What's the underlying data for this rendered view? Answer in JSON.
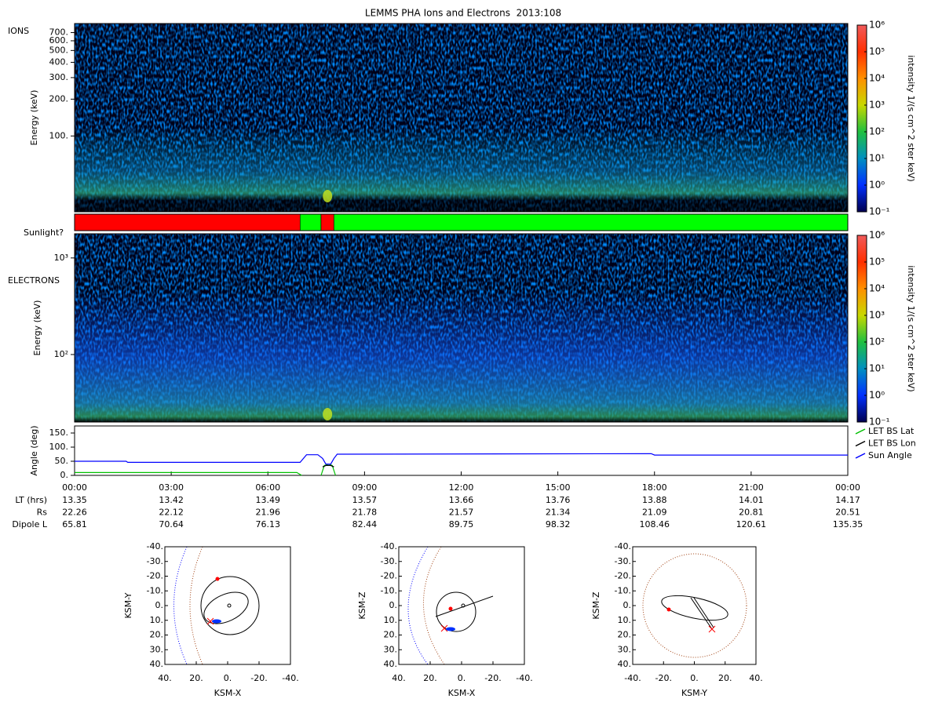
{
  "chart_data": [
    {
      "type": "heatmap",
      "title": "LEMMS PHA Ions and Electrons  2013:108",
      "label": "IONS",
      "ylabel": "Energy (keV)",
      "ylim": [
        24,
        830
      ],
      "log_y": true,
      "yticks": [
        {
          "value": 100,
          "label": "100."
        },
        {
          "value": 200,
          "label": "200."
        },
        {
          "value": 300,
          "label": "300."
        },
        {
          "value": 400,
          "label": "400."
        },
        {
          "value": 500,
          "label": "500."
        },
        {
          "value": 600,
          "label": "600."
        },
        {
          "value": 700,
          "label": "700."
        }
      ],
      "colorbar": {
        "label": "intensity 1/(s cm^2 ster keV)",
        "lim": [
          0.1,
          1000000
        ],
        "log": true,
        "ticks": [
          {
            "value": 0.1,
            "label": "10⁻¹"
          },
          {
            "value": 1,
            "label": "10⁰"
          },
          {
            "value": 10,
            "label": "10¹"
          },
          {
            "value": 100,
            "label": "10²"
          },
          {
            "value": 1000,
            "label": "10³"
          },
          {
            "value": 10000,
            "label": "10⁴"
          },
          {
            "value": 100000,
            "label": "10⁵"
          },
          {
            "value": 1000000,
            "label": "10⁶"
          }
        ]
      }
    },
    {
      "type": "timeline",
      "label": "Sunlight?",
      "xlim": [
        0,
        24
      ],
      "segments": [
        {
          "start": 0,
          "end": 7.0,
          "color": "#ff0000"
        },
        {
          "start": 7.0,
          "end": 7.65,
          "color": "#00ff00"
        },
        {
          "start": 7.65,
          "end": 8.05,
          "color": "#ff0000"
        },
        {
          "start": 8.05,
          "end": 24,
          "color": "#00ff00"
        }
      ]
    },
    {
      "type": "heatmap",
      "label": "ELECTRONS",
      "ylabel": "Energy (keV)",
      "ylim": [
        20,
        1780
      ],
      "log_y": true,
      "yticks": [
        {
          "value": 100,
          "label": "10²"
        },
        {
          "value": 1000,
          "label": "10³"
        }
      ],
      "colorbar": {
        "label": "intensity 1/(s cm^2 ster keV)",
        "lim": [
          0.1,
          1000000
        ],
        "log": true,
        "ticks": [
          {
            "value": 0.1,
            "label": "10⁻¹"
          },
          {
            "value": 1,
            "label": "10⁰"
          },
          {
            "value": 10,
            "label": "10¹"
          },
          {
            "value": 100,
            "label": "10²"
          },
          {
            "value": 1000,
            "label": "10³"
          },
          {
            "value": 10000,
            "label": "10⁴"
          },
          {
            "value": 100000,
            "label": "10⁵"
          },
          {
            "value": 1000000,
            "label": "10⁶"
          }
        ]
      }
    },
    {
      "type": "line",
      "ylabel": "Angle (deg)",
      "xlim": [
        0,
        24
      ],
      "ylim": [
        0,
        175
      ],
      "legend": "right",
      "yticks": [
        {
          "value": 0,
          "label": "0."
        },
        {
          "value": 50,
          "label": "50."
        },
        {
          "value": 100,
          "label": "100."
        },
        {
          "value": 150,
          "label": "150."
        }
      ],
      "xticks": [
        {
          "value": 0,
          "label": "00:00"
        },
        {
          "value": 3,
          "label": "03:00"
        },
        {
          "value": 6,
          "label": "06:00"
        },
        {
          "value": 9,
          "label": "09:00"
        },
        {
          "value": 12,
          "label": "12:00"
        },
        {
          "value": 15,
          "label": "15:00"
        },
        {
          "value": 18,
          "label": "18:00"
        },
        {
          "value": 21,
          "label": "21:00"
        },
        {
          "value": 24,
          "label": "00:00"
        }
      ],
      "series": [
        {
          "name": "LET BS Lat",
          "color": "#00c000",
          "x": [
            0,
            6.9,
            7.05,
            7.4,
            7.65,
            7.75,
            7.9,
            8.0,
            8.1
          ],
          "values": [
            10,
            10,
            0,
            null,
            0,
            35,
            40,
            35,
            0
          ]
        },
        {
          "name": "LET BS Lon",
          "color": "#000000",
          "x": [
            7.7,
            7.8,
            7.95,
            8.05
          ],
          "values": [
            30,
            35,
            35,
            30
          ]
        },
        {
          "name": "Sun Angle",
          "color": "#0000ff",
          "x": [
            0,
            1.6,
            1.65,
            7.0,
            7.2,
            7.55,
            7.7,
            7.8,
            7.95,
            8.05,
            8.15,
            17.9,
            18.0,
            24
          ],
          "values": [
            50,
            50,
            46,
            46,
            73,
            73,
            60,
            40,
            40,
            60,
            75,
            77,
            72,
            72
          ]
        }
      ]
    },
    {
      "type": "orbit",
      "xlabel": "KSM-X",
      "ylabel": "KSM-Y",
      "xlim": [
        40,
        -40
      ],
      "ylim": [
        40,
        -40
      ],
      "xticks": [
        {
          "value": 40,
          "label": "40."
        },
        {
          "value": 20,
          "label": "20."
        },
        {
          "value": 0,
          "label": "0."
        },
        {
          "value": -20,
          "label": "-20."
        },
        {
          "value": -40,
          "label": "-40."
        }
      ],
      "yticks": [
        {
          "value": -40,
          "label": "-40."
        },
        {
          "value": -30,
          "label": "-30."
        },
        {
          "value": -20,
          "label": "-20."
        },
        {
          "value": -10,
          "label": "-10."
        },
        {
          "value": 0,
          "label": "0."
        },
        {
          "value": 10,
          "label": "10."
        },
        {
          "value": 20,
          "label": "20."
        },
        {
          "value": 30,
          "label": "30."
        },
        {
          "value": 40,
          "label": "40."
        }
      ]
    },
    {
      "type": "orbit",
      "xlabel": "KSM-X",
      "ylabel": "KSM-Z",
      "xlim": [
        40,
        -40
      ],
      "ylim": [
        40,
        -40
      ],
      "xticks": [
        {
          "value": 40,
          "label": "40."
        },
        {
          "value": 20,
          "label": "20."
        },
        {
          "value": 0,
          "label": "0."
        },
        {
          "value": -20,
          "label": "-20."
        },
        {
          "value": -40,
          "label": "-40."
        }
      ],
      "yticks": [
        {
          "value": -40,
          "label": "-40."
        },
        {
          "value": -30,
          "label": "-30."
        },
        {
          "value": -20,
          "label": "-20."
        },
        {
          "value": -10,
          "label": "-10."
        },
        {
          "value": 0,
          "label": "0."
        },
        {
          "value": 10,
          "label": "10."
        },
        {
          "value": 20,
          "label": "20."
        },
        {
          "value": 30,
          "label": "30."
        },
        {
          "value": 40,
          "label": "40."
        }
      ]
    },
    {
      "type": "orbit",
      "xlabel": "KSM-Y",
      "ylabel": "KSM-Z",
      "xlim": [
        -40,
        40
      ],
      "ylim": [
        40,
        -40
      ],
      "xticks": [
        {
          "value": -40,
          "label": "-40."
        },
        {
          "value": -20,
          "label": "-20."
        },
        {
          "value": 0,
          "label": "0."
        },
        {
          "value": 20,
          "label": "20."
        },
        {
          "value": 40,
          "label": "40."
        }
      ],
      "yticks": [
        {
          "value": -40,
          "label": "-40."
        },
        {
          "value": -30,
          "label": "-30."
        },
        {
          "value": -20,
          "label": "-20."
        },
        {
          "value": -10,
          "label": "-10."
        },
        {
          "value": 0,
          "label": "0."
        },
        {
          "value": 10,
          "label": "10."
        },
        {
          "value": 20,
          "label": "20."
        },
        {
          "value": 30,
          "label": "30."
        },
        {
          "value": 40,
          "label": "40."
        }
      ]
    }
  ],
  "ephemeris": {
    "rows": [
      {
        "label": "LT (hrs)",
        "values": [
          13.35,
          13.42,
          13.49,
          13.57,
          13.66,
          13.76,
          13.88,
          14.01,
          14.17
        ]
      },
      {
        "label": "Rs",
        "values": [
          22.26,
          22.12,
          21.96,
          21.78,
          21.57,
          21.34,
          21.09,
          20.81,
          20.51
        ]
      },
      {
        "label": "Dipole L",
        "values": [
          65.81,
          70.64,
          76.13,
          82.44,
          89.75,
          98.32,
          108.46,
          120.61,
          135.35
        ]
      }
    ]
  }
}
